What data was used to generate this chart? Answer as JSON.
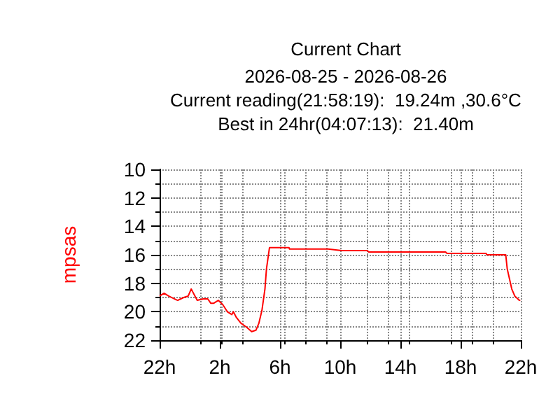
{
  "chart_data": {
    "type": "line",
    "title": "Current Chart",
    "subtitle": "2026-08-25 - 2026-08-26",
    "annotations": [
      "Current reading(21:58:19):  19.24m ,30.6°C",
      "Best in 24hr(04:07:13):  21.40m"
    ],
    "ylabel": "mpsas",
    "x": [
      "2026-08-25T22:00",
      "2026-08-25T22:18",
      "2026-08-25T22:36",
      "2026-08-25T23:00",
      "2026-08-25T23:12",
      "2026-08-25T23:36",
      "2026-08-25T23:54",
      "2026-08-26T00:06",
      "2026-08-26T00:12",
      "2026-08-26T00:30",
      "2026-08-26T00:54",
      "2026-08-26T01:12",
      "2026-08-26T01:24",
      "2026-08-26T01:36",
      "2026-08-26T01:54",
      "2026-08-26T02:12",
      "2026-08-26T02:30",
      "2026-08-26T02:48",
      "2026-08-26T02:54",
      "2026-08-26T03:06",
      "2026-08-26T03:24",
      "2026-08-26T03:48",
      "2026-08-26T04:07",
      "2026-08-26T04:24",
      "2026-08-26T04:36",
      "2026-08-26T04:48",
      "2026-08-26T05:00",
      "2026-08-26T05:06",
      "2026-08-26T05:18",
      "2026-08-26T06:36",
      "2026-08-26T06:38",
      "2026-08-26T09:12",
      "2026-08-26T10:06",
      "2026-08-26T11:48",
      "2026-08-26T11:54",
      "2026-08-26T14:24",
      "2026-08-26T14:30",
      "2026-08-26T17:00",
      "2026-08-26T17:06",
      "2026-08-26T19:42",
      "2026-08-26T19:44",
      "2026-08-26T21:00",
      "2026-08-26T21:06",
      "2026-08-26T21:24",
      "2026-08-26T21:36",
      "2026-08-26T21:54",
      "2026-08-26T21:58"
    ],
    "series": [
      {
        "color": "#ff0000",
        "values": [
          18.9,
          18.7,
          18.9,
          19.1,
          19.2,
          19.0,
          18.9,
          18.4,
          18.6,
          19.2,
          19.1,
          19.1,
          19.4,
          19.4,
          19.2,
          19.5,
          20.0,
          20.2,
          20.0,
          20.4,
          20.8,
          21.1,
          21.4,
          21.3,
          20.8,
          19.9,
          18.4,
          17.0,
          15.5,
          15.5,
          15.6,
          15.6,
          15.7,
          15.7,
          15.8,
          15.8,
          15.8,
          15.8,
          15.9,
          15.9,
          16.0,
          16.0,
          17.0,
          18.4,
          18.9,
          19.2,
          19.2
        ]
      }
    ],
    "xlim": [
      "2026-08-25T22:00",
      "2026-08-26T22:00"
    ],
    "xticks": [
      {
        "value": "2026-08-25T22:00",
        "label": "22h"
      },
      {
        "value": "2026-08-26T02:00",
        "label": "2h"
      },
      {
        "value": "2026-08-26T06:00",
        "label": "6h"
      },
      {
        "value": "2026-08-26T10:00",
        "label": "10h"
      },
      {
        "value": "2026-08-26T14:00",
        "label": "14h"
      },
      {
        "value": "2026-08-26T18:00",
        "label": "18h"
      },
      {
        "value": "2026-08-26T22:00",
        "label": "22h"
      }
    ],
    "ylim": [
      22,
      10
    ],
    "yticks": [
      10,
      12,
      14,
      16,
      18,
      20,
      22
    ],
    "grid": true,
    "marker": "none",
    "line_style": "solid"
  }
}
